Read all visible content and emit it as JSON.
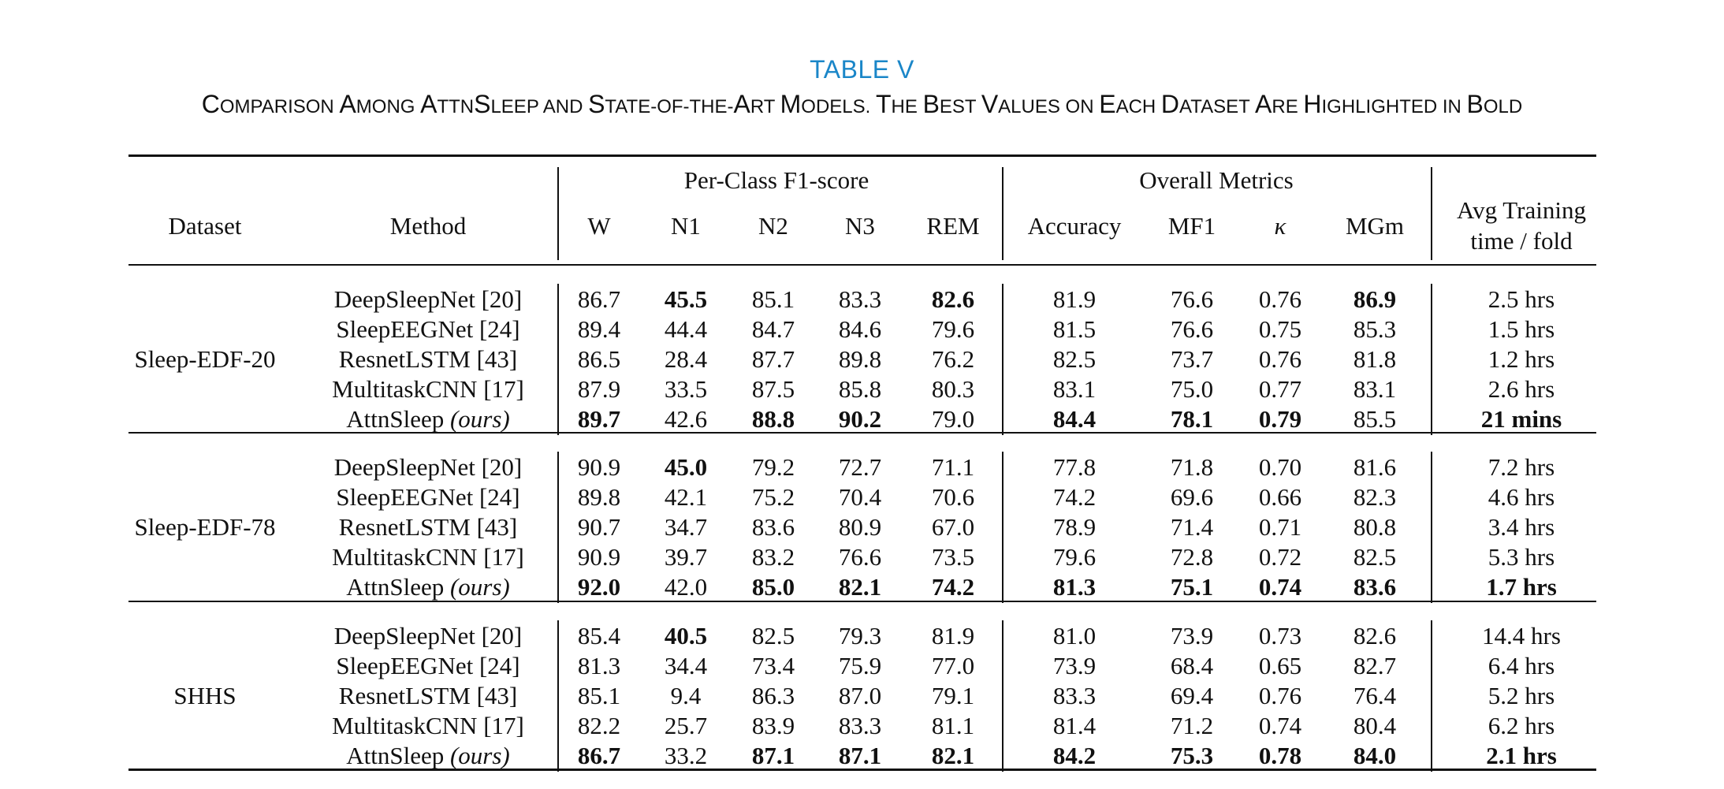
{
  "table_label": "TABLE V",
  "title_parts": [
    {
      "t": "C",
      "sc": false
    },
    {
      "t": "OMPARISON ",
      "sc": true
    },
    {
      "t": "A",
      "sc": false
    },
    {
      "t": "MONG ",
      "sc": true
    },
    {
      "t": "A",
      "sc": false
    },
    {
      "t": "TTN",
      "sc": true
    },
    {
      "t": "S",
      "sc": false
    },
    {
      "t": "LEEP AND ",
      "sc": true
    },
    {
      "t": "S",
      "sc": false
    },
    {
      "t": "TATE-OF-THE-",
      "sc": true
    },
    {
      "t": "A",
      "sc": false
    },
    {
      "t": "RT ",
      "sc": true
    },
    {
      "t": "M",
      "sc": false
    },
    {
      "t": "ODELS. ",
      "sc": true
    },
    {
      "t": "T",
      "sc": false
    },
    {
      "t": "HE ",
      "sc": true
    },
    {
      "t": "B",
      "sc": false
    },
    {
      "t": "EST ",
      "sc": true
    },
    {
      "t": "V",
      "sc": false
    },
    {
      "t": "ALUES ON ",
      "sc": true
    },
    {
      "t": "E",
      "sc": false
    },
    {
      "t": "ACH ",
      "sc": true
    },
    {
      "t": "D",
      "sc": false
    },
    {
      "t": "ATASET ",
      "sc": true
    },
    {
      "t": "A",
      "sc": false
    },
    {
      "t": "RE ",
      "sc": true
    },
    {
      "t": "H",
      "sc": false
    },
    {
      "t": "IGHLIGHTED IN ",
      "sc": true
    },
    {
      "t": "B",
      "sc": false
    },
    {
      "t": "OLD",
      "sc": true
    }
  ],
  "header": {
    "dataset": "Dataset",
    "method": "Method",
    "group_f1": "Per-Class F1-score",
    "group_overall": "Overall Metrics",
    "columns": [
      "W",
      "N1",
      "N2",
      "N3",
      "REM",
      "Accuracy",
      "MF1",
      "κ",
      "MGm"
    ],
    "time_line1": "Avg Training",
    "time_line2": "time / fold"
  },
  "groups": [
    {
      "dataset": "Sleep-EDF-20",
      "rows": [
        {
          "method": "DeepSleepNet [20]",
          "suffix": "",
          "values": [
            "86.7",
            "45.5",
            "85.1",
            "83.3",
            "82.6",
            "81.9",
            "76.6",
            "0.76",
            "86.9"
          ],
          "bold": [
            false,
            true,
            false,
            false,
            true,
            false,
            false,
            false,
            true
          ],
          "time": "2.5 hrs",
          "time_bold": false
        },
        {
          "method": "SleepEEGNet [24]",
          "suffix": "",
          "values": [
            "89.4",
            "44.4",
            "84.7",
            "84.6",
            "79.6",
            "81.5",
            "76.6",
            "0.75",
            "85.3"
          ],
          "bold": [
            false,
            false,
            false,
            false,
            false,
            false,
            false,
            false,
            false
          ],
          "time": "1.5 hrs",
          "time_bold": false
        },
        {
          "method": "ResnetLSTM [43]",
          "suffix": "",
          "values": [
            "86.5",
            "28.4",
            "87.7",
            "89.8",
            "76.2",
            "82.5",
            "73.7",
            "0.76",
            "81.8"
          ],
          "bold": [
            false,
            false,
            false,
            false,
            false,
            false,
            false,
            false,
            false
          ],
          "time": "1.2 hrs",
          "time_bold": false
        },
        {
          "method": "MultitaskCNN [17]",
          "suffix": "",
          "values": [
            "87.9",
            "33.5",
            "87.5",
            "85.8",
            "80.3",
            "83.1",
            "75.0",
            "0.77",
            "83.1"
          ],
          "bold": [
            false,
            false,
            false,
            false,
            false,
            false,
            false,
            false,
            false
          ],
          "time": "2.6 hrs",
          "time_bold": false
        },
        {
          "method": "AttnSleep",
          "suffix": "(ours)",
          "values": [
            "89.7",
            "42.6",
            "88.8",
            "90.2",
            "79.0",
            "84.4",
            "78.1",
            "0.79",
            "85.5"
          ],
          "bold": [
            true,
            false,
            true,
            true,
            false,
            true,
            true,
            true,
            false
          ],
          "time": "21 mins",
          "time_bold": true
        }
      ]
    },
    {
      "dataset": "Sleep-EDF-78",
      "rows": [
        {
          "method": "DeepSleepNet [20]",
          "suffix": "",
          "values": [
            "90.9",
            "45.0",
            "79.2",
            "72.7",
            "71.1",
            "77.8",
            "71.8",
            "0.70",
            "81.6"
          ],
          "bold": [
            false,
            true,
            false,
            false,
            false,
            false,
            false,
            false,
            false
          ],
          "time": "7.2 hrs",
          "time_bold": false
        },
        {
          "method": "SleepEEGNet [24]",
          "suffix": "",
          "values": [
            "89.8",
            "42.1",
            "75.2",
            "70.4",
            "70.6",
            "74.2",
            "69.6",
            "0.66",
            "82.3"
          ],
          "bold": [
            false,
            false,
            false,
            false,
            false,
            false,
            false,
            false,
            false
          ],
          "time": "4.6 hrs",
          "time_bold": false
        },
        {
          "method": "ResnetLSTM [43]",
          "suffix": "",
          "values": [
            "90.7",
            "34.7",
            "83.6",
            "80.9",
            "67.0",
            "78.9",
            "71.4",
            "0.71",
            "80.8"
          ],
          "bold": [
            false,
            false,
            false,
            false,
            false,
            false,
            false,
            false,
            false
          ],
          "time": "3.4 hrs",
          "time_bold": false
        },
        {
          "method": "MultitaskCNN [17]",
          "suffix": "",
          "values": [
            "90.9",
            "39.7",
            "83.2",
            "76.6",
            "73.5",
            "79.6",
            "72.8",
            "0.72",
            "82.5"
          ],
          "bold": [
            false,
            false,
            false,
            false,
            false,
            false,
            false,
            false,
            false
          ],
          "time": "5.3 hrs",
          "time_bold": false
        },
        {
          "method": "AttnSleep",
          "suffix": "(ours)",
          "values": [
            "92.0",
            "42.0",
            "85.0",
            "82.1",
            "74.2",
            "81.3",
            "75.1",
            "0.74",
            "83.6"
          ],
          "bold": [
            true,
            false,
            true,
            true,
            true,
            true,
            true,
            true,
            true
          ],
          "time": "1.7 hrs",
          "time_bold": true
        }
      ]
    },
    {
      "dataset": "SHHS",
      "rows": [
        {
          "method": "DeepSleepNet [20]",
          "suffix": "",
          "values": [
            "85.4",
            "40.5",
            "82.5",
            "79.3",
            "81.9",
            "81.0",
            "73.9",
            "0.73",
            "82.6"
          ],
          "bold": [
            false,
            true,
            false,
            false,
            false,
            false,
            false,
            false,
            false
          ],
          "time": "14.4 hrs",
          "time_bold": false
        },
        {
          "method": "SleepEEGNet [24]",
          "suffix": "",
          "values": [
            "81.3",
            "34.4",
            "73.4",
            "75.9",
            "77.0",
            "73.9",
            "68.4",
            "0.65",
            "82.7"
          ],
          "bold": [
            false,
            false,
            false,
            false,
            false,
            false,
            false,
            false,
            false
          ],
          "time": "6.4 hrs",
          "time_bold": false
        },
        {
          "method": "ResnetLSTM [43]",
          "suffix": "",
          "values": [
            "85.1",
            "9.4",
            "86.3",
            "87.0",
            "79.1",
            "83.3",
            "69.4",
            "0.76",
            "76.4"
          ],
          "bold": [
            false,
            false,
            false,
            false,
            false,
            false,
            false,
            false,
            false
          ],
          "time": "5.2 hrs",
          "time_bold": false
        },
        {
          "method": "MultitaskCNN [17]",
          "suffix": "",
          "values": [
            "82.2",
            "25.7",
            "83.9",
            "83.3",
            "81.1",
            "81.4",
            "71.2",
            "0.74",
            "80.4"
          ],
          "bold": [
            false,
            false,
            false,
            false,
            false,
            false,
            false,
            false,
            false
          ],
          "time": "6.2 hrs",
          "time_bold": false
        },
        {
          "method": "AttnSleep",
          "suffix": "(ours)",
          "values": [
            "86.7",
            "33.2",
            "87.1",
            "87.1",
            "82.1",
            "84.2",
            "75.3",
            "0.78",
            "84.0"
          ],
          "bold": [
            true,
            false,
            true,
            true,
            true,
            true,
            true,
            true,
            true
          ],
          "time": "2.1 hrs",
          "time_bold": true
        }
      ]
    }
  ]
}
